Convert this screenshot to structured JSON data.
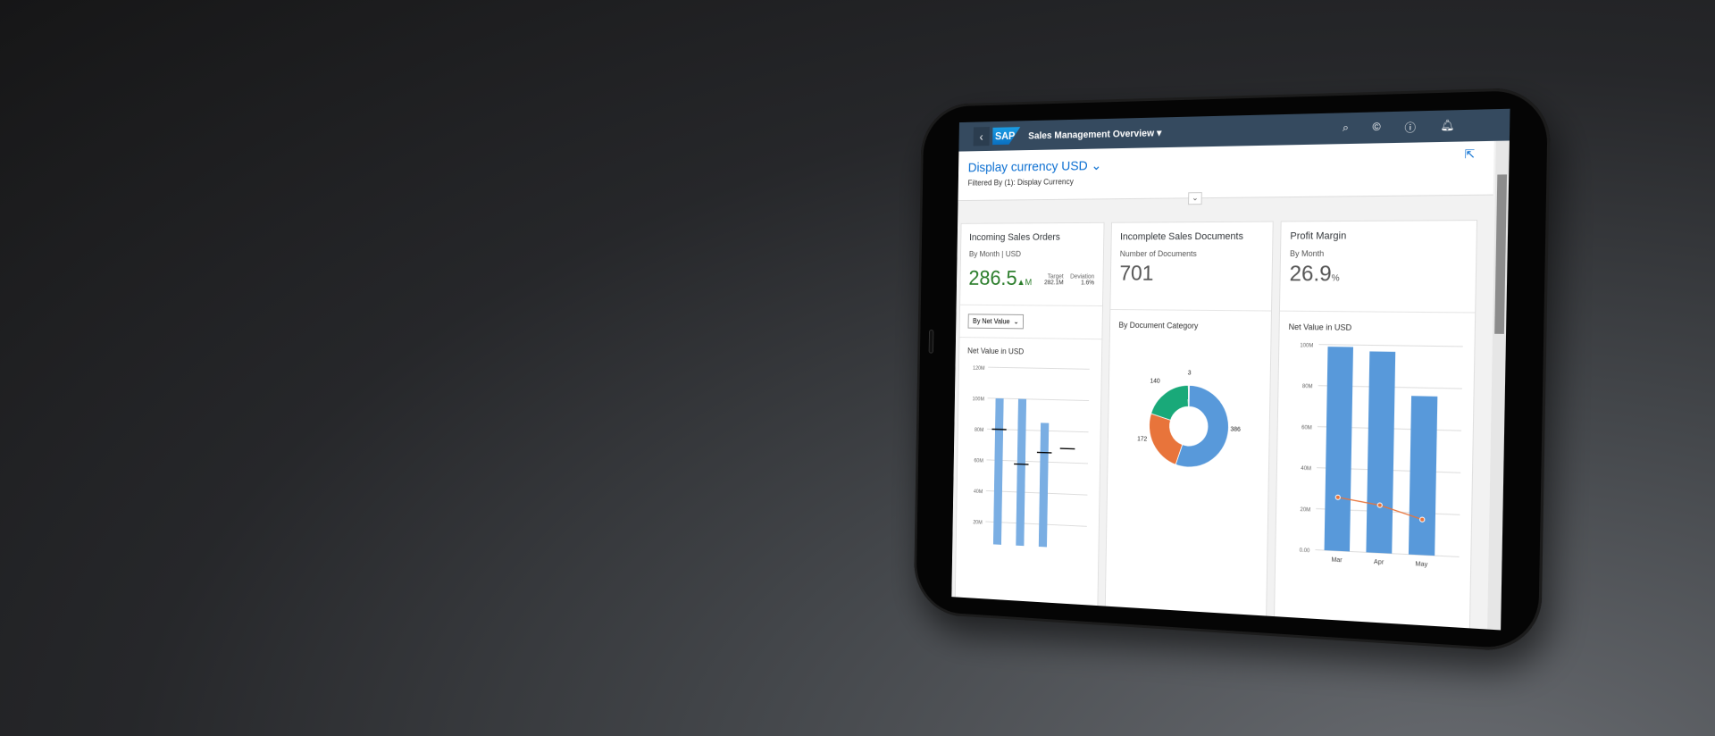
{
  "shell": {
    "title": "Sales Management Overview",
    "logo": "SAP",
    "icons": [
      "search-icon",
      "coins-icon",
      "help-icon",
      "bell-icon"
    ]
  },
  "filter": {
    "currency": "Display currency USD",
    "filtered": "Filtered By (1): Display Currency"
  },
  "cards": [
    {
      "title": "Incoming Sales Orders",
      "subtitle": "By Month | USD",
      "kpi": "286.5",
      "unit": "M",
      "trend": "up",
      "target_label": "Target",
      "target": "282.1M",
      "deviation_label": "Deviation",
      "deviation": "1.6%",
      "select": "By Net Value",
      "chart_title": "Net Value in USD"
    },
    {
      "title": "Incomplete Sales Documents",
      "subtitle": "Number of Documents",
      "kpi": "701",
      "chart_title": "By Document Category"
    },
    {
      "title": "Profit Margin",
      "subtitle": "By Month",
      "kpi": "26.9",
      "unit": "%",
      "chart_title": "Net Value in USD"
    }
  ],
  "colors": {
    "shell": "#354a5f",
    "accent": "#0a6ed1",
    "bar": "#5899da",
    "orange": "#e8743b",
    "green": "#19a979",
    "kpi_green": "#2b7d2b"
  },
  "chart_data": [
    {
      "type": "bar",
      "ylabel": "Net Value in USD",
      "yticks": [
        "20M",
        "40M",
        "60M",
        "80M",
        "100M",
        "120M"
      ],
      "ylim": [
        0,
        120
      ],
      "values": [
        100,
        100,
        85
      ],
      "targets": [
        80,
        58,
        66,
        69
      ]
    },
    {
      "type": "pie",
      "donut": true,
      "values": [
        386,
        172,
        140,
        3
      ],
      "labels": [
        "386",
        "172",
        "140",
        "3"
      ],
      "colors": [
        "#5899da",
        "#e8743b",
        "#19a979",
        "#cccccc"
      ]
    },
    {
      "type": "bar",
      "ylabel": "Net Value in USD",
      "categories": [
        "Mar",
        "Apr",
        "May"
      ],
      "yticks": [
        "0.00",
        "20M",
        "40M",
        "60M",
        "80M",
        "100M"
      ],
      "ylim": [
        0,
        100
      ],
      "values": [
        99,
        97,
        76
      ],
      "line": [
        26,
        23,
        17
      ]
    }
  ]
}
